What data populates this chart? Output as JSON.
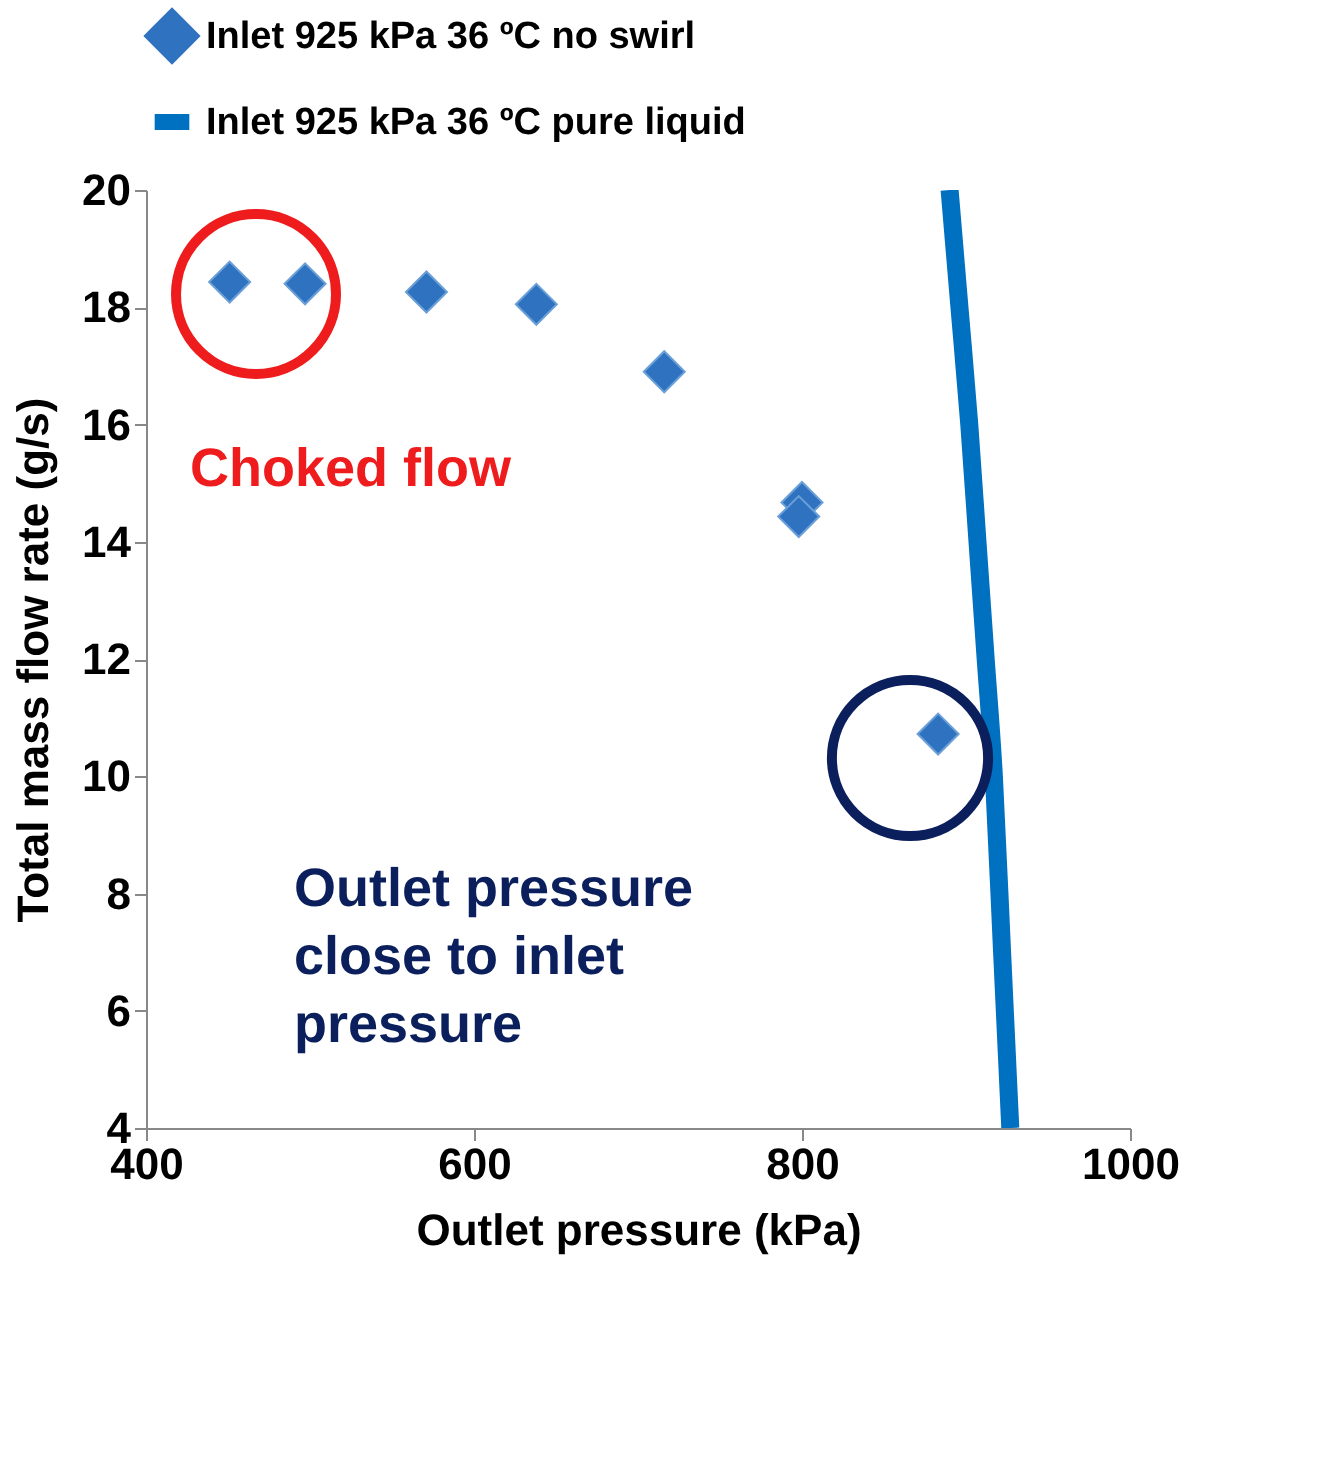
{
  "chart_data": {
    "type": "scatter",
    "xlabel": "Outlet pressure (kPa)",
    "ylabel": "Total mass flow rate (g/s)",
    "xlim": [
      400,
      1000
    ],
    "xticks": [
      400,
      600,
      800,
      1000
    ],
    "ylim": [
      4,
      20
    ],
    "yticks": [
      4,
      6,
      8,
      10,
      12,
      14,
      16,
      18,
      20
    ],
    "grid": false,
    "legend": "top",
    "series": [
      {
        "name": "Inlet 925 kPa 36 ºC no swirl",
        "color": "#2f72c0",
        "marker": "diamond",
        "x": [
          451,
          497,
          571,
          638,
          716,
          800,
          798,
          883
        ],
        "values": [
          18.43,
          18.4,
          18.26,
          18.05,
          16.9,
          14.67,
          14.43,
          10.72
        ]
      },
      {
        "name": "Inlet 925 kPa 36 ºC pure liquid",
        "type": "line",
        "color": "#0070c0",
        "line_style": "solid",
        "x": [
          890,
          896,
          902,
          907,
          912,
          917,
          922,
          927
        ],
        "values": [
          20,
          18,
          16,
          14,
          12,
          10,
          7,
          4
        ]
      }
    ],
    "annotations": [
      "Choked flow",
      "Outlet pressure\nclose to inlet\npressure"
    ]
  }
}
